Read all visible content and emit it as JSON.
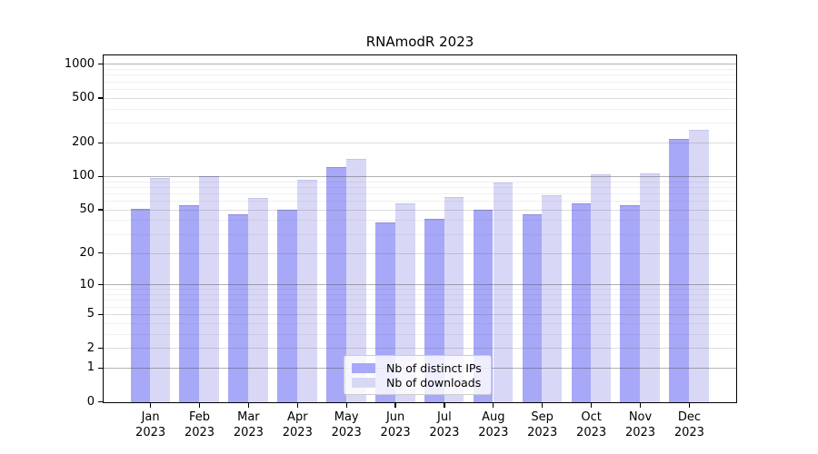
{
  "title": "RNAmodR 2023",
  "chart_data": {
    "type": "bar",
    "title": "RNAmodR 2023",
    "categories": [
      "Jan",
      "Feb",
      "Mar",
      "Apr",
      "May",
      "Jun",
      "Jul",
      "Aug",
      "Sep",
      "Oct",
      "Nov",
      "Dec"
    ],
    "year_label": "2023",
    "series": [
      {
        "name": "Nb of distinct IPs",
        "color": "#a8a8f8",
        "values": [
          51,
          55,
          45,
          50,
          120,
          38,
          41,
          50,
          45,
          57,
          55,
          213
        ]
      },
      {
        "name": "Nb of downloads",
        "color": "#d8d8f6",
        "values": [
          97,
          100,
          63,
          92,
          143,
          57,
          65,
          88,
          67,
          103,
          106,
          260
        ]
      }
    ],
    "yscale": "log1p",
    "ylim": [
      0,
      1190
    ],
    "yticks": [
      0,
      1,
      2,
      5,
      10,
      20,
      50,
      100,
      200,
      500,
      1000
    ],
    "ytick_major": [
      1,
      10,
      100,
      1000
    ],
    "minor_gridlines": [
      3,
      4,
      6,
      7,
      8,
      9,
      30,
      40,
      60,
      70,
      80,
      90,
      300,
      400,
      600,
      700,
      800,
      900
    ],
    "grid": "horizontal",
    "legend_position": "lower-center"
  },
  "colors": {
    "bar_ips": "#a8a8f8",
    "bar_downloads": "#d8d8f6",
    "grid_major": "#b1b1b1",
    "grid_mid": "#e0e0e0",
    "grid_minor": "#f1f1f1",
    "axis": "#000000",
    "legend_border": "#cccccc"
  }
}
